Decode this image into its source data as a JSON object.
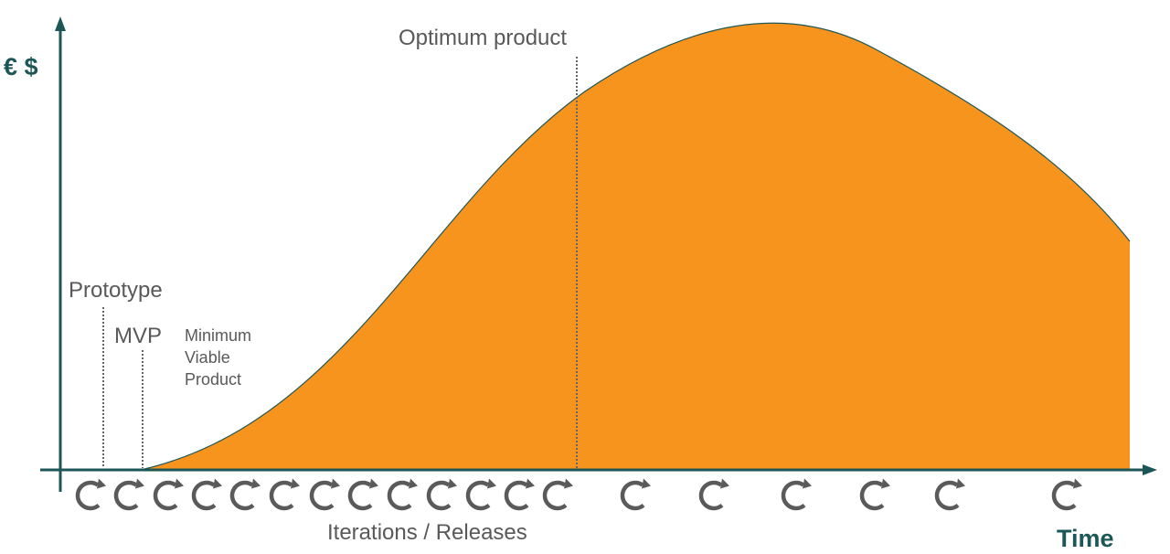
{
  "diagram": {
    "y_axis_label": "€ $",
    "x_axis_label": "Time",
    "x_caption": "Iterations / Releases",
    "markers": {
      "prototype": "Prototype",
      "mvp": "MVP",
      "mvp_description": [
        "Minimum",
        "Viable",
        "Product"
      ],
      "optimum": "Optimum product"
    },
    "colors": {
      "area_fill": "#F7941D",
      "axis": "#1D5656",
      "label_text": "#595959",
      "iteration_icon": "#5a5a5a",
      "marker_line": "#666666"
    },
    "iteration_icon": "circular-arrow-icon",
    "iteration_count": 19
  }
}
